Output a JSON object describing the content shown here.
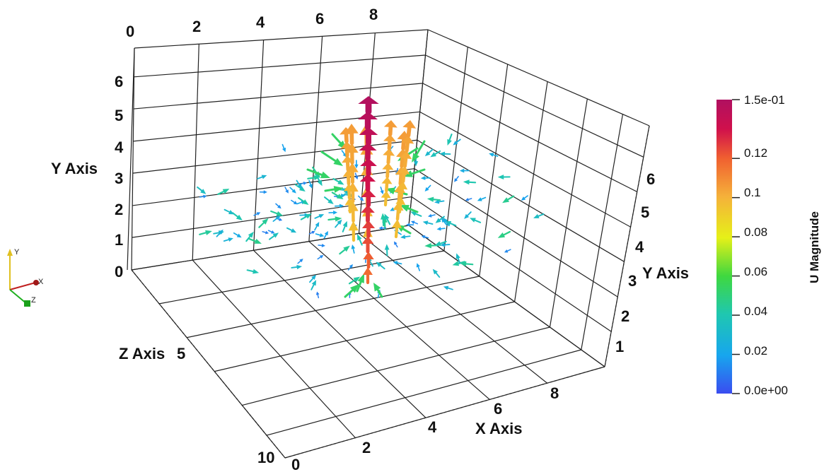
{
  "chart_data": {
    "type": "3d-vector-glyph",
    "axes": {
      "x": {
        "label": "X Axis",
        "ticks_bottom": [
          "2",
          "4",
          "6",
          "8"
        ],
        "ticks_top": [
          "0",
          "2",
          "4",
          "6",
          "8"
        ]
      },
      "y": {
        "label": "Y Axis",
        "ticks_left": [
          "0",
          "1",
          "2",
          "3",
          "4",
          "5",
          "6"
        ],
        "ticks_right": [
          "1",
          "2",
          "3",
          "4",
          "5",
          "6"
        ]
      },
      "z": {
        "label": "Z Axis",
        "ticks": [
          "5",
          "10"
        ]
      },
      "origin_label": "0"
    },
    "colorbar": {
      "title": "U Magnitude",
      "range": [
        0.0,
        0.15
      ],
      "labels": [
        "1.5e-01",
        "0.12",
        "0.1",
        "0.08",
        "0.06",
        "0.04",
        "0.02",
        "0.0e+00"
      ],
      "label_values": [
        0.15,
        0.12,
        0.1,
        0.08,
        0.06,
        0.04,
        0.02,
        0.0
      ],
      "colormap": [
        "#3a4cf0",
        "#17a6ee",
        "#1fc7b0",
        "#3fd83f",
        "#e6f018",
        "#f5b13a",
        "#f06030",
        "#d0104c",
        "#b01060"
      ]
    },
    "orientation": {
      "labels": [
        "Y",
        "X",
        "Z"
      ],
      "colors": {
        "x": "#c02020",
        "y": "#e0c020",
        "z": "#20b020"
      }
    }
  }
}
